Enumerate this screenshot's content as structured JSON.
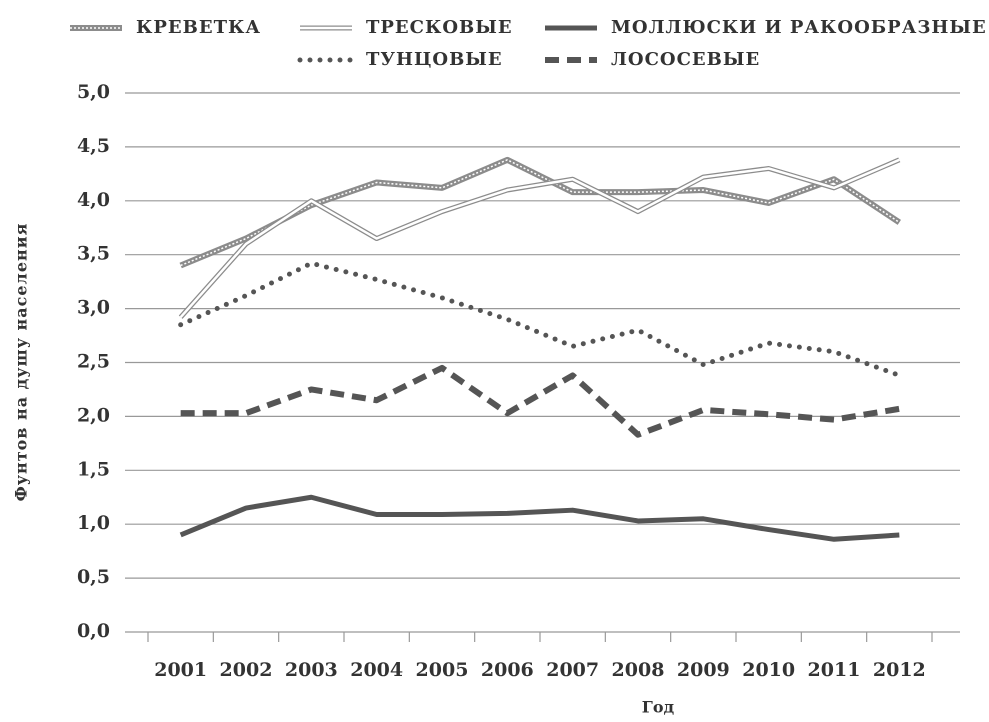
{
  "chart_data": {
    "type": "line",
    "x_label": "Год",
    "y_label": "Фунтов на душу населения",
    "categories": [
      "2001",
      "2002",
      "2003",
      "2004",
      "2005",
      "2006",
      "2007",
      "2008",
      "2009",
      "2010",
      "2011",
      "2012"
    ],
    "series": [
      {
        "name": "КРЕВЕТКА",
        "color": "#8c8c8c",
        "style": "hatched",
        "values": [
          3.4,
          3.65,
          3.96,
          4.17,
          4.12,
          4.38,
          4.08,
          4.08,
          4.1,
          3.98,
          4.2,
          3.8
        ]
      },
      {
        "name": "ТРЕСКОВЫЕ",
        "color": "#8c8c8c",
        "style": "diamond",
        "values": [
          2.92,
          3.6,
          4.0,
          3.65,
          3.9,
          4.1,
          4.2,
          3.9,
          4.22,
          4.3,
          4.12,
          4.38
        ]
      },
      {
        "name": "МОЛЛЮСКИ И РАКООБРАЗНЫЕ",
        "color": "#555555",
        "style": "solid",
        "values": [
          0.9,
          1.15,
          1.25,
          1.09,
          1.09,
          1.1,
          1.13,
          1.03,
          1.05,
          0.95,
          0.86,
          0.9
        ]
      },
      {
        "name": "ТУНЦОВЫЕ",
        "color": "#555555",
        "style": "dotted",
        "values": [
          2.85,
          3.12,
          3.42,
          3.27,
          3.1,
          2.9,
          2.65,
          2.8,
          2.48,
          2.68,
          2.6,
          2.38
        ]
      },
      {
        "name": "ЛОСОСЕВЫЕ",
        "color": "#555555",
        "style": "dashed",
        "values": [
          2.03,
          2.03,
          2.25,
          2.15,
          2.45,
          2.03,
          2.38,
          1.83,
          2.06,
          2.02,
          1.97,
          2.07
        ]
      }
    ],
    "ylim": [
      0,
      5
    ],
    "yticks": [
      {
        "value": 0,
        "label": "0,0"
      },
      {
        "value": 0.5,
        "label": "0,5"
      },
      {
        "value": 1,
        "label": "1,0"
      },
      {
        "value": 1.5,
        "label": "1,5"
      },
      {
        "value": 2,
        "label": "2,0"
      },
      {
        "value": 2.5,
        "label": "2,5"
      },
      {
        "value": 3,
        "label": "3,0"
      },
      {
        "value": 3.5,
        "label": "3,5"
      },
      {
        "value": 4,
        "label": "4,0"
      },
      {
        "value": 4.5,
        "label": "4,5"
      },
      {
        "value": 5,
        "label": "5,0"
      }
    ],
    "grid": true,
    "legend": "top"
  }
}
